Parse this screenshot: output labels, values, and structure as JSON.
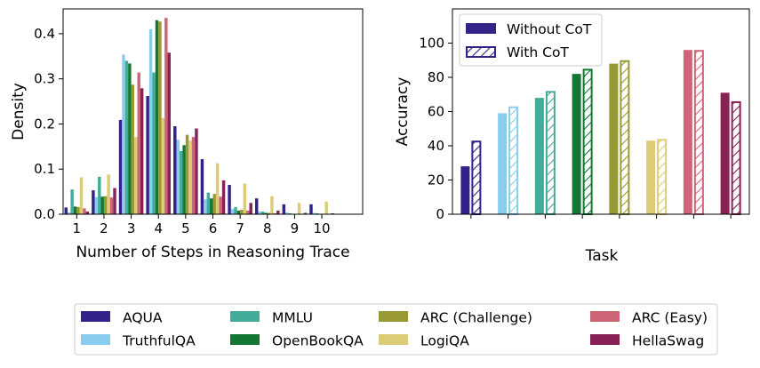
{
  "chart_data": [
    {
      "type": "bar",
      "title": "",
      "xlabel": "Number of Steps in Reasoning Trace",
      "ylabel": "Density",
      "xlim": [
        0.5,
        11.5
      ],
      "ylim": [
        0,
        0.455
      ],
      "xticks": [
        1,
        2,
        3,
        4,
        5,
        6,
        7,
        8,
        9,
        10
      ],
      "yticks": [
        0.0,
        0.1,
        0.2,
        0.3,
        0.4
      ],
      "ytick_labels": [
        "0.0",
        "0.1",
        "0.2",
        "0.3",
        "0.4"
      ],
      "series": [
        {
          "name": "AQUA",
          "color": "#332288",
          "values": [
            0.015,
            0.053,
            0.209,
            0.262,
            0.195,
            0.122,
            0.065,
            0.035,
            0.022,
            0.022
          ]
        },
        {
          "name": "TruthfulQA",
          "color": "#88CCEE",
          "values": [
            0.004,
            0.038,
            0.354,
            0.41,
            0.165,
            0.033,
            0.012,
            0.006,
            0.004,
            0.003
          ]
        },
        {
          "name": "MMLU",
          "color": "#44AA99",
          "values": [
            0.055,
            0.083,
            0.34,
            0.314,
            0.14,
            0.048,
            0.016,
            0.006,
            0.002,
            0.002
          ]
        },
        {
          "name": "OpenBookQA",
          "color": "#117733",
          "values": [
            0.017,
            0.039,
            0.334,
            0.43,
            0.153,
            0.035,
            0.008,
            0.003,
            0.001,
            0.0
          ]
        },
        {
          "name": "ARC (Challenge)",
          "color": "#999933",
          "values": [
            0.016,
            0.04,
            0.287,
            0.427,
            0.176,
            0.045,
            0.01,
            0.003,
            0.001,
            0.0
          ]
        },
        {
          "name": "LogiQA",
          "color": "#DDCC77",
          "values": [
            0.082,
            0.088,
            0.171,
            0.213,
            0.163,
            0.113,
            0.068,
            0.04,
            0.025,
            0.028
          ]
        },
        {
          "name": "ARC (Easy)",
          "color": "#CC6677",
          "values": [
            0.013,
            0.037,
            0.314,
            0.435,
            0.171,
            0.039,
            0.008,
            0.002,
            0.001,
            0.0
          ]
        },
        {
          "name": "HellaSwag",
          "color": "#882255",
          "values": [
            0.006,
            0.058,
            0.279,
            0.358,
            0.19,
            0.075,
            0.025,
            0.008,
            0.003,
            0.002
          ]
        }
      ]
    },
    {
      "type": "bar",
      "title": "",
      "xlabel": "Task",
      "ylabel": "Accuracy",
      "ylim": [
        0,
        120
      ],
      "yticks": [
        0,
        20,
        40,
        60,
        80,
        100
      ],
      "ytick_labels": [
        "0",
        "20",
        "40",
        "60",
        "80",
        "100"
      ],
      "categories": [
        "AQUA",
        "TruthfulQA",
        "MMLU",
        "OpenBookQA",
        "ARC (Challenge)",
        "LogiQA",
        "ARC (Easy)",
        "HellaSwag"
      ],
      "colors": [
        "#332288",
        "#88CCEE",
        "#44AA99",
        "#117733",
        "#999933",
        "#DDCC77",
        "#CC6677",
        "#882255"
      ],
      "series": [
        {
          "name": "Without CoT",
          "style": "solid",
          "values": [
            28,
            59,
            68,
            82,
            88,
            43,
            96,
            71
          ]
        },
        {
          "name": "With CoT",
          "style": "hatched",
          "values": [
            43,
            63,
            72,
            85,
            90,
            44,
            96,
            66
          ]
        }
      ],
      "legend": {
        "position": "top-left",
        "entries": [
          "Without CoT",
          "With CoT"
        ]
      }
    }
  ],
  "bottom_legend": {
    "entries": [
      {
        "label": "AQUA",
        "color": "#332288"
      },
      {
        "label": "TruthfulQA",
        "color": "#88CCEE"
      },
      {
        "label": "MMLU",
        "color": "#44AA99"
      },
      {
        "label": "OpenBookQA",
        "color": "#117733"
      },
      {
        "label": "ARC (Challenge)",
        "color": "#999933"
      },
      {
        "label": "LogiQA",
        "color": "#DDCC77"
      },
      {
        "label": "ARC (Easy)",
        "color": "#CC6677"
      },
      {
        "label": "HellaSwag",
        "color": "#882255"
      }
    ]
  }
}
